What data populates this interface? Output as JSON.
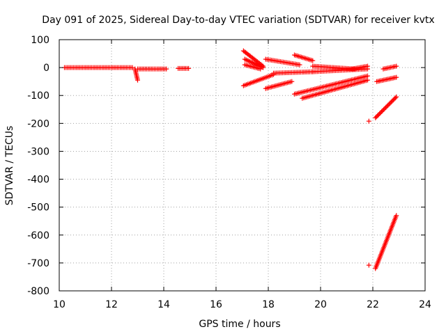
{
  "chart_data": {
    "type": "scatter",
    "title": "Day 091 of 2025, Sidereal Day-to-day VTEC variation (SDTVAR) for receiver kvtx",
    "xlabel": "GPS time / hours",
    "ylabel": "SDTVAR / TECUs",
    "xlim": [
      10,
      24
    ],
    "ylim": [
      -800,
      100
    ],
    "xticks": [
      "10",
      "12",
      "14",
      "16",
      "18",
      "20",
      "22",
      "24"
    ],
    "yticks": [
      "100",
      "0",
      "-100",
      "-200",
      "-300",
      "-400",
      "-500",
      "-600",
      "-700",
      "-800"
    ],
    "grid": true,
    "marker": "+",
    "color": "#ff0000",
    "segments": [
      {
        "x": [
          10.2,
          12.8
        ],
        "y": [
          0,
          0
        ]
      },
      {
        "x": [
          12.9,
          13.0
        ],
        "y": [
          -5,
          -45
        ]
      },
      {
        "x": [
          13.0,
          14.1
        ],
        "y": [
          -5,
          -5
        ]
      },
      {
        "x": [
          14.55,
          14.95
        ],
        "y": [
          -3,
          -3
        ]
      },
      {
        "x": [
          17.05,
          17.8
        ],
        "y": [
          60,
          5
        ]
      },
      {
        "x": [
          17.1,
          17.8
        ],
        "y": [
          30,
          0
        ]
      },
      {
        "x": [
          17.1,
          17.7
        ],
        "y": [
          10,
          -5
        ]
      },
      {
        "x": [
          17.9,
          19.2
        ],
        "y": [
          30,
          10
        ]
      },
      {
        "x": [
          19.0,
          19.7
        ],
        "y": [
          45,
          25
        ]
      },
      {
        "x": [
          19.7,
          21.3
        ],
        "y": [
          5,
          -5
        ]
      },
      {
        "x": [
          17.05,
          18.2
        ],
        "y": [
          -65,
          -25
        ]
      },
      {
        "x": [
          18.2,
          19.7
        ],
        "y": [
          -20,
          -15
        ]
      },
      {
        "x": [
          19.7,
          21.8
        ],
        "y": [
          -15,
          -5
        ]
      },
      {
        "x": [
          17.9,
          18.9
        ],
        "y": [
          -75,
          -50
        ]
      },
      {
        "x": [
          19.0,
          21.8
        ],
        "y": [
          -95,
          -30
        ]
      },
      {
        "x": [
          19.3,
          21.8
        ],
        "y": [
          -110,
          -45
        ]
      },
      {
        "x": [
          21.2,
          21.8
        ],
        "y": [
          -5,
          5
        ]
      },
      {
        "x": [
          22.15,
          22.9
        ],
        "y": [
          -50,
          -35
        ]
      },
      {
        "x": [
          22.4,
          22.9
        ],
        "y": [
          -5,
          5
        ]
      },
      {
        "x": [
          22.1,
          22.9
        ],
        "y": [
          -180,
          -105
        ]
      },
      {
        "x": [
          22.1,
          22.9
        ],
        "y": [
          -720,
          -530
        ]
      }
    ],
    "points": [
      {
        "x": 21.85,
        "y": -192
      },
      {
        "x": 21.85,
        "y": -708
      }
    ]
  }
}
